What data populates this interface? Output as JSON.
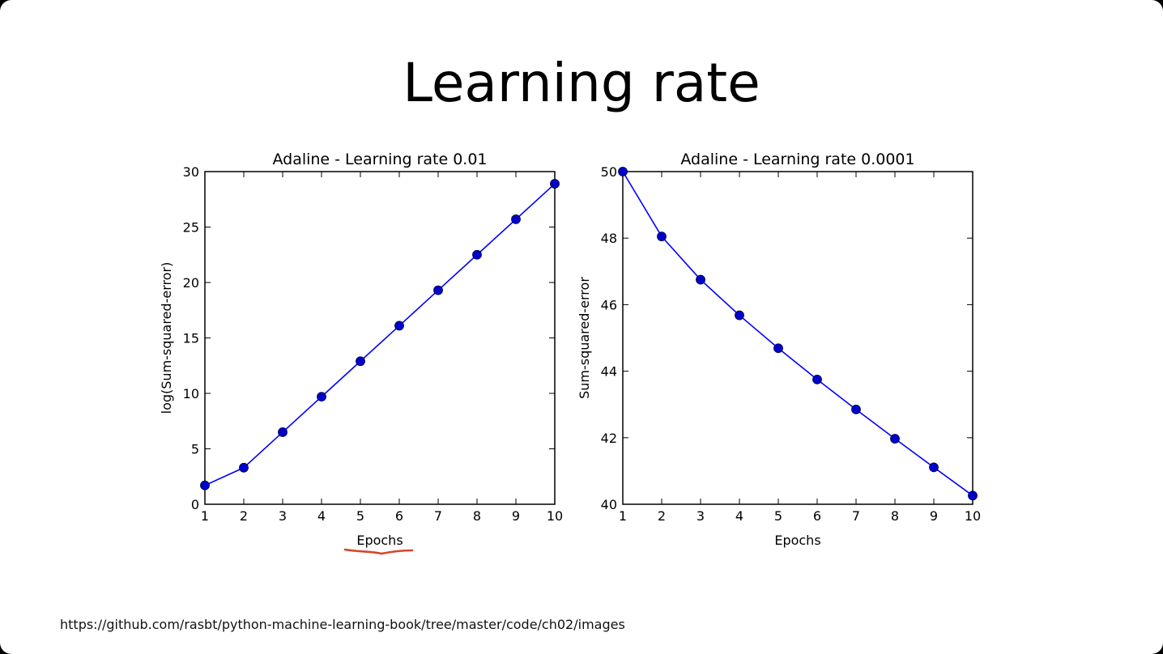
{
  "slide": {
    "title": "Learning rate",
    "footer_url": "https://github.com/rasbt/python-machine-learning-book/tree/master/code/ch02/images"
  },
  "colors": {
    "series": "#0000ff",
    "marker": "#0000cc",
    "annotation": "#d9452b"
  },
  "chart_data": [
    {
      "type": "line",
      "title": "Adaline - Learning rate 0.01",
      "xlabel": "Epochs",
      "ylabel": "log(Sum-squared-error)",
      "xlim": [
        1,
        10
      ],
      "ylim": [
        0,
        30
      ],
      "xticks": [
        1,
        2,
        3,
        4,
        5,
        6,
        7,
        8,
        9,
        10
      ],
      "yticks": [
        0,
        5,
        10,
        15,
        20,
        25,
        30
      ],
      "grid": false,
      "x": [
        1,
        2,
        3,
        4,
        5,
        6,
        7,
        8,
        9,
        10
      ],
      "series": [
        {
          "values": [
            1.7,
            3.3,
            6.5,
            9.7,
            12.9,
            16.1,
            19.3,
            22.5,
            25.7,
            28.9
          ]
        }
      ],
      "annotation": "red hand-drawn underline beneath x-axis label"
    },
    {
      "type": "line",
      "title": "Adaline - Learning rate 0.0001",
      "xlabel": "Epochs",
      "ylabel": "Sum-squared-error",
      "xlim": [
        1,
        10
      ],
      "ylim": [
        40,
        50
      ],
      "xticks": [
        1,
        2,
        3,
        4,
        5,
        6,
        7,
        8,
        9,
        10
      ],
      "yticks": [
        40,
        42,
        44,
        46,
        48,
        50
      ],
      "grid": false,
      "x": [
        1,
        2,
        3,
        4,
        5,
        6,
        7,
        8,
        9,
        10
      ],
      "series": [
        {
          "values": [
            50.0,
            48.05,
            46.75,
            45.68,
            44.69,
            43.75,
            42.85,
            41.97,
            41.11,
            40.26
          ]
        }
      ]
    }
  ]
}
